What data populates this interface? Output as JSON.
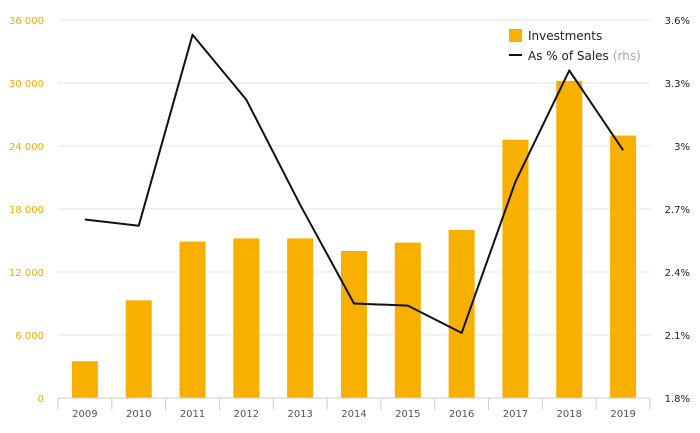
{
  "chart_data": {
    "type": "bar",
    "categories": [
      "2009",
      "2010",
      "2011",
      "2012",
      "2013",
      "2014",
      "2015",
      "2016",
      "2017",
      "2018",
      "2019"
    ],
    "series": [
      {
        "name": "Investments",
        "type": "bar",
        "axis": "left",
        "color": "#f8b000",
        "values": [
          3500,
          9300,
          14900,
          15200,
          15200,
          14000,
          14800,
          16000,
          24600,
          30200,
          25000
        ]
      },
      {
        "name": "As % of Sales",
        "name_note": "(rhs)",
        "type": "line",
        "axis": "right",
        "color": "#111111",
        "values": [
          2.65,
          2.62,
          3.53,
          3.22,
          2.72,
          2.25,
          2.24,
          2.11,
          2.83,
          3.36,
          2.98
        ]
      }
    ],
    "y_left": {
      "ylim": [
        0,
        36000
      ],
      "ticks": [
        0,
        6000,
        12000,
        18000,
        24000,
        30000,
        36000
      ],
      "tick_labels": [
        "0",
        "6 000",
        "12 000",
        "18 000",
        "24 000",
        "30 000",
        "36 000"
      ],
      "color": "#f0ab00"
    },
    "y_right": {
      "ylim": [
        1.8,
        3.6
      ],
      "ticks": [
        1.8,
        2.1,
        2.4,
        2.7,
        3.0,
        3.3,
        3.6
      ],
      "tick_labels": [
        "1.8%",
        "2.1%",
        "2.4%",
        "2.7%",
        "3%",
        "3.3%",
        "3.6%"
      ]
    },
    "grid": true,
    "legend_position": "top-right"
  }
}
